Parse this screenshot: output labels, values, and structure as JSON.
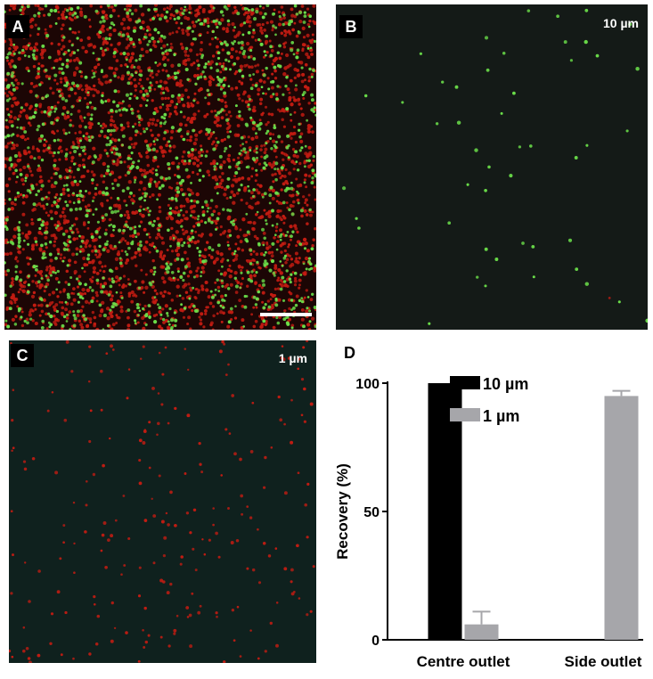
{
  "panels": {
    "a": {
      "letter": "A"
    },
    "b": {
      "letter": "B",
      "tag": "10 µm"
    },
    "c": {
      "letter": "C",
      "tag": "1 µm"
    },
    "d": {
      "letter": "D"
    }
  },
  "colors": {
    "micro_bg_a": "#1c0605",
    "micro_bg_b": "#141a17",
    "micro_bg_c": "#0f211e",
    "red_bead": "#c41c12",
    "green_bead": "#6be04a",
    "bar_10um": "#000000",
    "bar_1um": "#a6a6aa"
  },
  "chart_data": {
    "type": "bar",
    "categories": [
      "Centre outlet",
      "Side outlet"
    ],
    "series": [
      {
        "name": "10 µm",
        "values": [
          100,
          0
        ],
        "errors": [
          0,
          0
        ],
        "color": "#000000"
      },
      {
        "name": "1 µm",
        "values": [
          6,
          95
        ],
        "errors": [
          5,
          2
        ],
        "color": "#a6a6aa"
      }
    ],
    "ylabel": "Recovery (%)",
    "xlabel": "",
    "ylim": [
      0,
      100
    ],
    "yticks": [
      0,
      50,
      100
    ],
    "legend": "top-left"
  }
}
